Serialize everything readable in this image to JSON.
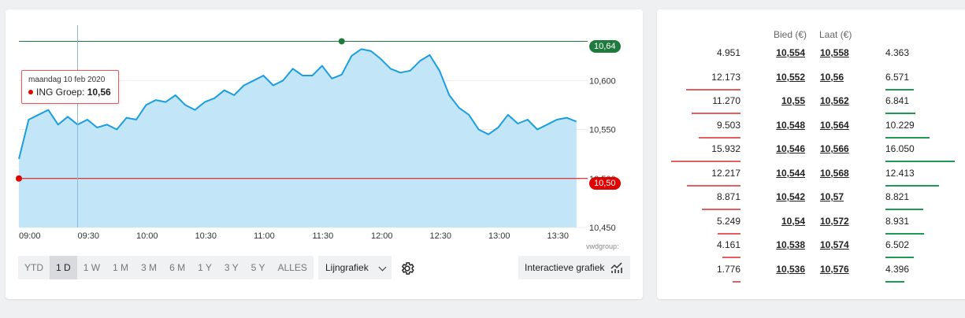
{
  "chart": {
    "y_labels": [
      "10,600",
      "10,550",
      "10,500",
      "10,450"
    ],
    "y_axis_values": [
      10.6,
      10.55,
      10.5,
      10.45
    ],
    "y_range": [
      10.45,
      10.65
    ],
    "x_labels": [
      "09:00",
      "09:30",
      "10:00",
      "10:30",
      "11:00",
      "11:30",
      "12:00",
      "12:30",
      "13:00",
      "13:30"
    ],
    "high_label": "10,64",
    "high_value": 10.64,
    "low_label": "10,50",
    "low_value": 10.5,
    "high_color": "#1f7a3d",
    "low_color": "#e00000",
    "line_color": "#1a9ee0",
    "fill_color": "#c2e6f7",
    "tooltip": {
      "date": "maandag 10 feb 2020",
      "name": "ING Groep:",
      "value": "10,56"
    },
    "source": "vwdgroup:"
  },
  "chart_data": {
    "type": "area",
    "x_time": [
      "09:00",
      "09:05",
      "09:10",
      "09:15",
      "09:20",
      "09:25",
      "09:30",
      "09:35",
      "09:40",
      "09:45",
      "09:50",
      "09:55",
      "10:00",
      "10:05",
      "10:10",
      "10:15",
      "10:20",
      "10:25",
      "10:30",
      "10:35",
      "10:40",
      "10:45",
      "10:50",
      "10:55",
      "11:00",
      "11:05",
      "11:10",
      "11:15",
      "11:20",
      "11:25",
      "11:30",
      "11:35",
      "11:40",
      "11:45",
      "11:50",
      "11:55",
      "12:00",
      "12:05",
      "12:10",
      "12:15",
      "12:20",
      "12:25",
      "12:30",
      "12:35",
      "12:40",
      "12:45",
      "12:50",
      "12:55",
      "13:00",
      "13:05",
      "13:10",
      "13:15",
      "13:20",
      "13:25",
      "13:30",
      "13:35",
      "13:40",
      "13:45"
    ],
    "y": [
      10.52,
      10.56,
      10.565,
      10.57,
      10.555,
      10.563,
      10.555,
      10.56,
      10.552,
      10.555,
      10.55,
      10.562,
      10.56,
      10.575,
      10.58,
      10.578,
      10.585,
      10.575,
      10.57,
      10.578,
      10.582,
      10.59,
      10.585,
      10.595,
      10.6,
      10.605,
      10.595,
      10.6,
      10.612,
      10.605,
      10.605,
      10.615,
      10.602,
      10.606,
      10.625,
      10.632,
      10.63,
      10.622,
      10.612,
      10.608,
      10.61,
      10.62,
      10.626,
      10.61,
      10.585,
      10.572,
      10.565,
      10.55,
      10.545,
      10.552,
      10.565,
      10.556,
      10.56,
      10.55,
      10.555,
      10.56,
      10.562,
      10.558
    ],
    "ylim": [
      10.45,
      10.65
    ],
    "reference_lines": [
      10.64,
      10.5
    ],
    "grid": true
  },
  "range_buttons": [
    "YTD",
    "1 D",
    "1 W",
    "1 M",
    "3 M",
    "6 M",
    "1 Y",
    "3 Y",
    "5 Y",
    "ALLES"
  ],
  "active_range": "1 D",
  "chart_type_label": "Lijngrafiek",
  "interactive_label": "Interactieve grafiek",
  "order_book": {
    "headers": {
      "bid": "Bied (€)",
      "ask": "Laat (€)"
    },
    "rows": [
      {
        "bid_qty": "4.951",
        "bid": "10,554",
        "ask": "10,558",
        "ask_qty": "4.363",
        "bid_frac": 0.0,
        "ask_frac": 0.0
      },
      {
        "bid_qty": "12.173",
        "bid": "10,552",
        "ask": "10,56",
        "ask_qty": "6.571",
        "bid_frac": 0.78,
        "ask_frac": 0.41
      },
      {
        "bid_qty": "11.270",
        "bid": "10,55",
        "ask": "10,562",
        "ask_qty": "6.841",
        "bid_frac": 0.71,
        "ask_frac": 0.43
      },
      {
        "bid_qty": "9.503",
        "bid": "10,548",
        "ask": "10,564",
        "ask_qty": "10.229",
        "bid_frac": 0.6,
        "ask_frac": 0.64
      },
      {
        "bid_qty": "15.932",
        "bid": "10,546",
        "ask": "10,566",
        "ask_qty": "16.050",
        "bid_frac": 1.0,
        "ask_frac": 1.0
      },
      {
        "bid_qty": "12.217",
        "bid": "10,544",
        "ask": "10,568",
        "ask_qty": "12.413",
        "bid_frac": 0.77,
        "ask_frac": 0.77
      },
      {
        "bid_qty": "8.871",
        "bid": "10,542",
        "ask": "10,57",
        "ask_qty": "8.821",
        "bid_frac": 0.56,
        "ask_frac": 0.55
      },
      {
        "bid_qty": "5.249",
        "bid": "10,54",
        "ask": "10,572",
        "ask_qty": "8.931",
        "bid_frac": 0.33,
        "ask_frac": 0.56
      },
      {
        "bid_qty": "4.161",
        "bid": "10,538",
        "ask": "10,574",
        "ask_qty": "6.502",
        "bid_frac": 0.26,
        "ask_frac": 0.41
      },
      {
        "bid_qty": "1.776",
        "bid": "10,536",
        "ask": "10,576",
        "ask_qty": "4.396",
        "bid_frac": 0.11,
        "ask_frac": 0.27
      }
    ]
  }
}
